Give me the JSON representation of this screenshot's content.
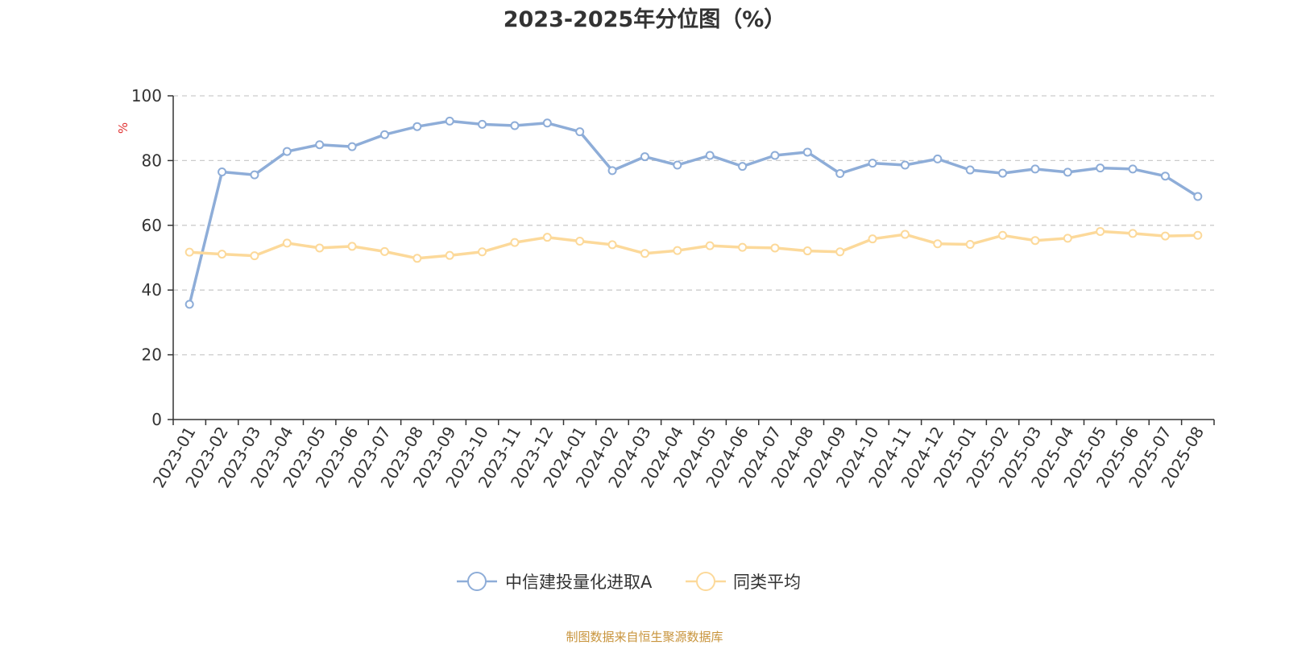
{
  "chart_data": {
    "type": "line",
    "title": "2023-2025年分位图（%）",
    "ylabel": "%",
    "xlabel": "",
    "ylim": [
      0,
      100
    ],
    "yticks": [
      0,
      20,
      40,
      60,
      80,
      100
    ],
    "grid": true,
    "legend_position": "bottom-center",
    "categories": [
      "2023-01",
      "2023-02",
      "2023-03",
      "2023-04",
      "2023-05",
      "2023-06",
      "2023-07",
      "2023-08",
      "2023-09",
      "2023-10",
      "2023-11",
      "2023-12",
      "2024-01",
      "2024-02",
      "2024-03",
      "2024-04",
      "2024-05",
      "2024-06",
      "2024-07",
      "2024-08",
      "2024-09",
      "2024-10",
      "2024-11",
      "2024-12",
      "2025-01",
      "2025-02",
      "2025-03",
      "2025-04",
      "2025-05",
      "2025-06",
      "2025-07",
      "2025-08"
    ],
    "series": [
      {
        "name": "中信建投量化进取A",
        "color": "#8eadd8",
        "values": [
          35.6,
          76.5,
          75.6,
          82.8,
          84.9,
          84.3,
          88.0,
          90.5,
          92.2,
          91.2,
          90.8,
          91.6,
          88.9,
          76.9,
          81.2,
          78.6,
          81.6,
          78.2,
          81.6,
          82.6,
          76.0,
          79.2,
          78.6,
          80.5,
          77.1,
          76.1,
          77.4,
          76.4,
          77.7,
          77.4,
          75.2,
          68.9
        ]
      },
      {
        "name": "同类平均",
        "color": "#fcd99a",
        "values": [
          51.7,
          51.1,
          50.6,
          54.5,
          53.0,
          53.5,
          51.9,
          49.8,
          50.7,
          51.8,
          54.7,
          56.3,
          55.1,
          54.0,
          51.3,
          52.2,
          53.7,
          53.2,
          53.0,
          52.1,
          51.8,
          55.8,
          57.2,
          54.3,
          54.1,
          56.9,
          55.3,
          56.0,
          58.1,
          57.5,
          56.7,
          56.9
        ]
      }
    ]
  },
  "footer": {
    "source": "制图数据来自恒生聚源数据库"
  },
  "colors": {
    "axis": "#333333",
    "grid": "#cccccc",
    "ylabel": "#e03030",
    "marker_fill": "#ffffff"
  }
}
